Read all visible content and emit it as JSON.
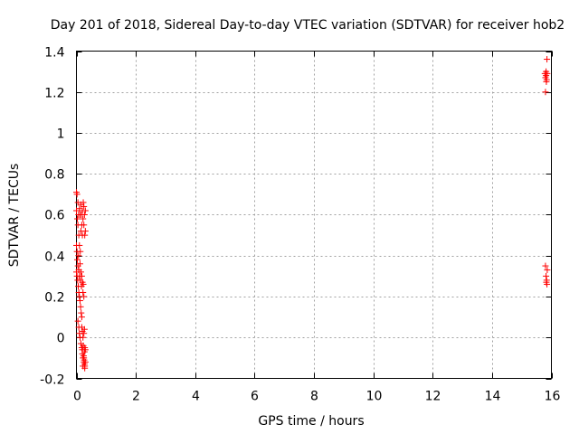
{
  "chart_data": {
    "type": "scatter",
    "title": "Day 201 of 2018, Sidereal Day-to-day VTEC variation (SDTVAR) for receiver hob2",
    "xlabel": "GPS time / hours",
    "ylabel": "SDTVAR / TECUs",
    "xlim": [
      0,
      16
    ],
    "ylim": [
      -0.2,
      1.4
    ],
    "xticks": [
      0,
      2,
      4,
      6,
      8,
      10,
      12,
      14,
      16
    ],
    "xtick_labels": [
      "0",
      "2",
      "4",
      "6",
      "8",
      "10",
      "12",
      "14",
      "16"
    ],
    "yticks": [
      -0.2,
      0,
      0.2,
      0.4,
      0.6,
      0.8,
      1,
      1.2,
      1.4
    ],
    "ytick_labels": [
      "-0.2",
      "0",
      "0.2",
      "0.4",
      "0.6",
      "0.8",
      "1",
      "1.2",
      "1.4"
    ],
    "grid": true,
    "marker": "+",
    "color": "#ff0000",
    "series": [
      {
        "name": "SDTVAR",
        "x": [
          0.0,
          0.0,
          0.02,
          0.03,
          0.05,
          0.05,
          0.07,
          0.08,
          0.1,
          0.1,
          0.12,
          0.13,
          0.15,
          0.15,
          0.17,
          0.18,
          0.2,
          0.2,
          0.22,
          0.23,
          0.25,
          0.25,
          0.27,
          0.28,
          0.3,
          0.3,
          0.0,
          0.02,
          0.03,
          0.05,
          0.07,
          0.08,
          0.1,
          0.12,
          0.13,
          0.15,
          0.17,
          0.18,
          0.2,
          0.22,
          0.23,
          0.25,
          0.0,
          0.02,
          0.04,
          0.06,
          0.08,
          0.1,
          0.12,
          0.14,
          0.16,
          0.18,
          0.05,
          0.08,
          0.1,
          0.12,
          0.15,
          0.18,
          0.2,
          0.22,
          0.25,
          0.27,
          0.28,
          0.3,
          0.18,
          0.2,
          0.22,
          0.23,
          0.25,
          0.27,
          0.28,
          0.3,
          0.2,
          0.22,
          0.24,
          0.26,
          0.28,
          0.25,
          0.27,
          15.78,
          15.8,
          15.82,
          15.83,
          15.85,
          15.8,
          15.82,
          15.84,
          15.86,
          15.8,
          15.82,
          15.83,
          15.85,
          15.86,
          15.84
        ],
        "y": [
          0.71,
          0.62,
          0.7,
          0.58,
          0.66,
          0.55,
          0.6,
          0.5,
          0.63,
          0.45,
          0.6,
          0.42,
          0.65,
          0.52,
          0.6,
          0.55,
          0.62,
          0.5,
          0.58,
          0.66,
          0.64,
          0.55,
          0.6,
          0.5,
          0.52,
          0.62,
          0.45,
          0.42,
          0.38,
          0.35,
          0.4,
          0.33,
          0.3,
          0.36,
          0.28,
          0.32,
          0.25,
          0.3,
          0.27,
          0.22,
          0.26,
          0.2,
          0.32,
          0.3,
          0.28,
          0.25,
          0.22,
          0.2,
          0.18,
          0.15,
          0.12,
          0.1,
          0.08,
          0.05,
          0.02,
          0.0,
          -0.03,
          -0.05,
          -0.08,
          -0.1,
          -0.12,
          -0.07,
          -0.14,
          -0.06,
          0.05,
          0.03,
          0.0,
          -0.04,
          -0.1,
          -0.13,
          -0.15,
          -0.12,
          -0.06,
          -0.14,
          -0.09,
          -0.11,
          -0.05,
          0.02,
          0.04,
          1.29,
          1.27,
          1.28,
          1.25,
          1.36,
          1.2,
          1.3,
          1.26,
          1.29,
          0.35,
          0.3,
          0.27,
          0.26,
          0.33,
          0.28
        ]
      }
    ]
  }
}
